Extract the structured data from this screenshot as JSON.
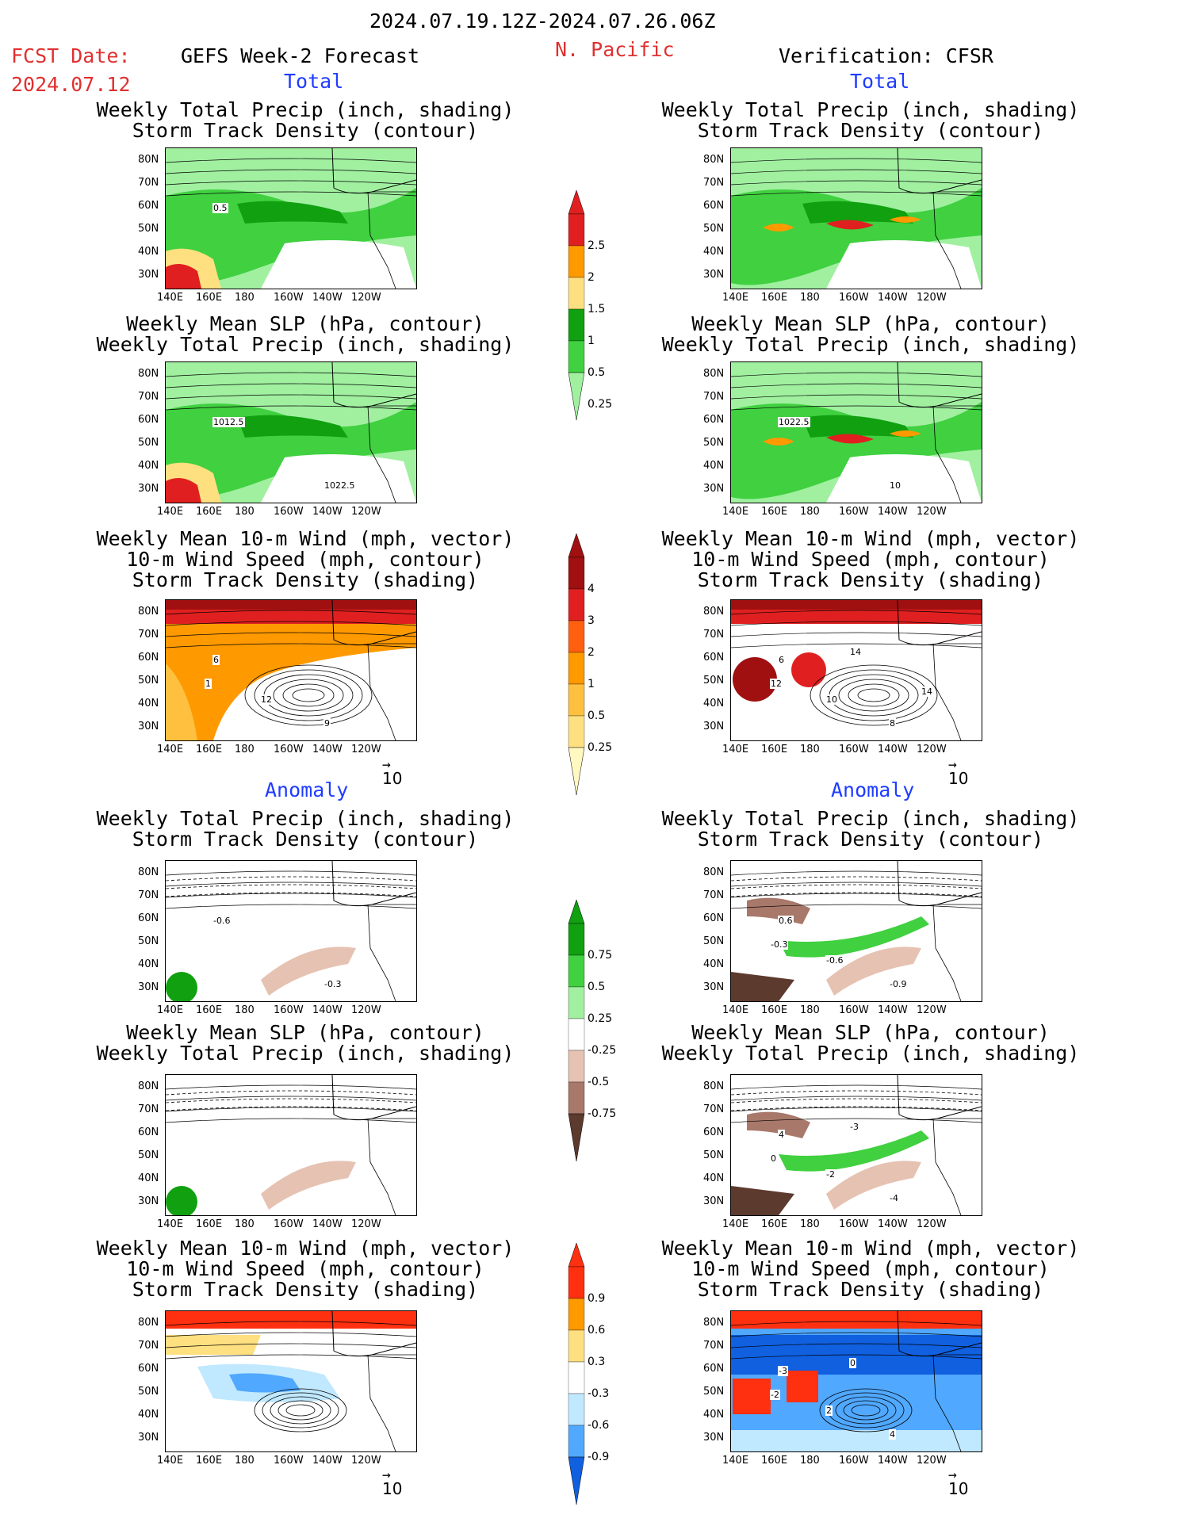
{
  "header": {
    "date_range": "2024.07.19.12Z-2024.07.26.06Z",
    "fcst_label": "FCST Date:",
    "fcst_date": "2024.07.12",
    "model": "GEFS Week-2 Forecast",
    "region": "N. Pacific",
    "verification": "Verification: CFSR"
  },
  "section_labels": {
    "total": "Total",
    "anomaly": "Anomaly"
  },
  "titles": {
    "precip_std": [
      "Weekly Total Precip (inch, shading)",
      "Storm Track Density (contour)"
    ],
    "slp_precip": [
      "Weekly Mean SLP (hPa, contour)",
      "Weekly Total Precip (inch, shading)"
    ],
    "wind": [
      "Weekly Mean 10-m Wind (mph, vector)",
      "10-m Wind Speed (mph, contour)",
      "Storm Track Density (shading)"
    ]
  },
  "axes": {
    "lat": [
      "80N",
      "70N",
      "60N",
      "50N",
      "40N",
      "30N"
    ],
    "lon": [
      "140E",
      "160E",
      "180",
      "160W",
      "140W",
      "120W"
    ]
  },
  "vector_ref": "10",
  "contour_labels": {
    "l_precip": [
      "0.5"
    ],
    "l_slp": [
      "1012.5",
      "1022.5"
    ],
    "l_wind": [
      "6",
      "9",
      "12",
      "1"
    ],
    "r_slp": [
      "1022.5",
      "10"
    ],
    "r_wind": [
      "6",
      "8",
      "10",
      "12",
      "14",
      "14"
    ],
    "la_precip": [
      "-0.6",
      "-0.3"
    ],
    "ra_precip": [
      "0.6",
      "-0.9",
      "-0.6",
      "-0.3"
    ],
    "ra_slp": [
      "4",
      "-4",
      "-2",
      "0",
      "-3"
    ],
    "ra_wind": [
      "-3",
      "4",
      "2",
      "-2",
      "0"
    ]
  },
  "colorbars": {
    "precip_total": {
      "labels": [
        "2.5",
        "2",
        "1.5",
        "1",
        "0.5",
        "0.25"
      ],
      "colors": [
        "#e02020",
        "#ff9900",
        "#ffe080",
        "#10a010",
        "#40d040",
        "#a0f0a0"
      ]
    },
    "std_total": {
      "labels": [
        "4",
        "3",
        "2",
        "1",
        "0.5",
        "0.25"
      ],
      "colors": [
        "#a01010",
        "#e02020",
        "#ff6010",
        "#ff9900",
        "#ffc040",
        "#ffe080",
        "#fff8c0"
      ]
    },
    "precip_anom": {
      "labels": [
        "0.75",
        "0.5",
        "0.25",
        "-0.25",
        "-0.5",
        "-0.75"
      ],
      "colors": [
        "#10a010",
        "#40d040",
        "#a0f0a0",
        "#ffffff",
        "#e6c2b2",
        "#a8786a",
        "#5c3a2e"
      ]
    },
    "std_anom": {
      "labels": [
        "0.9",
        "0.6",
        "0.3",
        "-0.3",
        "-0.6",
        "-0.9"
      ],
      "colors": [
        "#ff3010",
        "#ff9900",
        "#ffe080",
        "#ffffff",
        "#c0e8ff",
        "#50a8ff",
        "#1060e0"
      ]
    }
  }
}
